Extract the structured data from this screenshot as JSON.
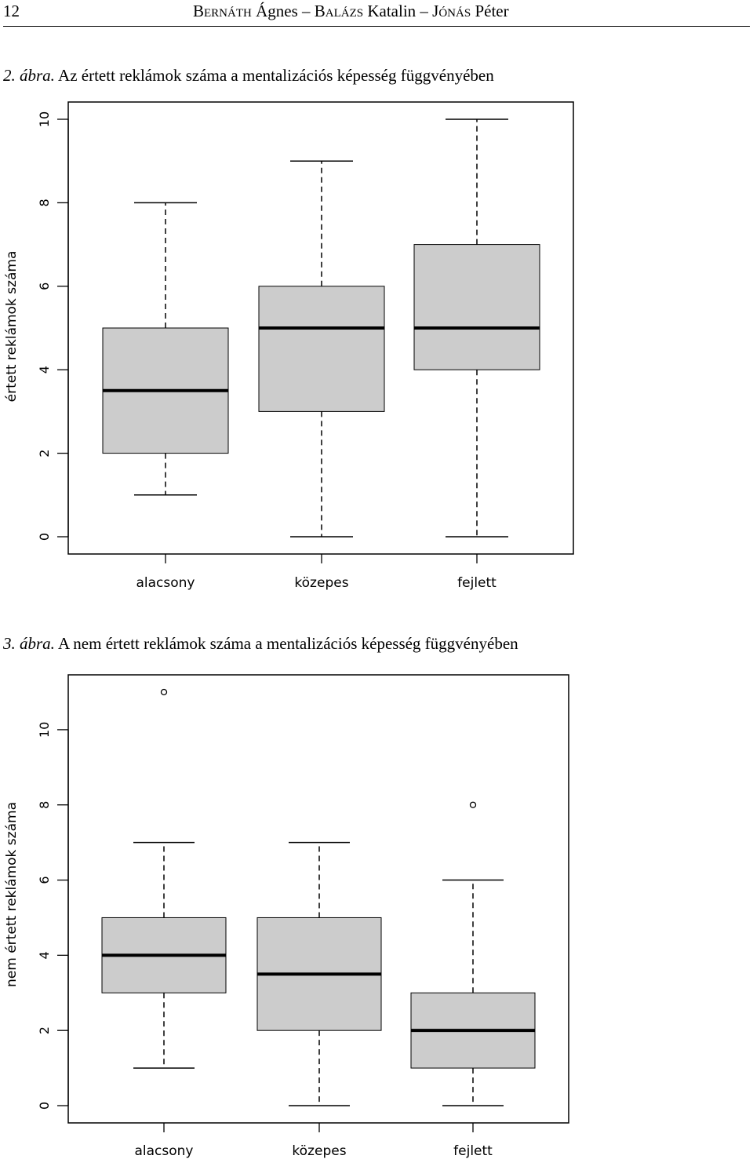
{
  "header": {
    "page_number": "12",
    "author1_surname": "Bernáth",
    "author1_given": "Ágnes",
    "author2_surname": "Balázs",
    "author2_given": "Katalin",
    "author3_surname": "Jónás",
    "author3_given": "Péter"
  },
  "figures": [
    {
      "label": "2. ábra.",
      "title": "Az értett reklámok száma a mentalizációs képesség függvényében"
    },
    {
      "label": "3. ábra.",
      "title": "A nem értett reklámok száma a mentalizációs képesség függvényében"
    }
  ],
  "chart_data": [
    {
      "type": "boxplot",
      "ylabel": "értett reklámok száma",
      "xlabel": "",
      "categories": [
        "alacsony",
        "közepes",
        "fejlett"
      ],
      "ylim": [
        0,
        10
      ],
      "yticks": [
        0,
        2,
        4,
        6,
        8,
        10
      ],
      "box_fill": "#cccccc",
      "boxes": [
        {
          "whisker_low": 1,
          "q1": 2,
          "median": 3.5,
          "q3": 5,
          "whisker_high": 8,
          "outliers": []
        },
        {
          "whisker_low": 0,
          "q1": 3,
          "median": 5,
          "q3": 6,
          "whisker_high": 9,
          "outliers": []
        },
        {
          "whisker_low": 0,
          "q1": 4,
          "median": 5,
          "q3": 7,
          "whisker_high": 10,
          "outliers": []
        }
      ]
    },
    {
      "type": "boxplot",
      "ylabel": "nem értett reklámok száma",
      "xlabel": "",
      "categories": [
        "alacsony",
        "közepes",
        "fejlett"
      ],
      "ylim": [
        0,
        11
      ],
      "yticks": [
        0,
        2,
        4,
        6,
        8,
        10
      ],
      "box_fill": "#cccccc",
      "boxes": [
        {
          "whisker_low": 1,
          "q1": 3,
          "median": 4,
          "q3": 5,
          "whisker_high": 7,
          "outliers": [
            11
          ]
        },
        {
          "whisker_low": 0,
          "q1": 2,
          "median": 3.5,
          "q3": 5,
          "whisker_high": 7,
          "outliers": []
        },
        {
          "whisker_low": 0,
          "q1": 1,
          "median": 2,
          "q3": 3,
          "whisker_high": 6,
          "outliers": [
            8
          ]
        }
      ]
    }
  ]
}
